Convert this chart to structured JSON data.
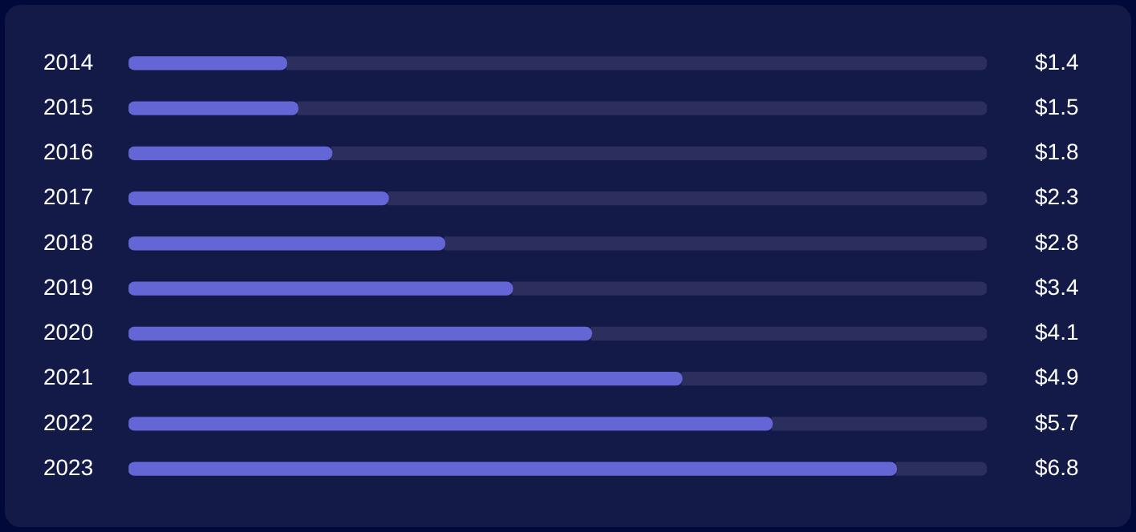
{
  "chart_data": {
    "type": "bar",
    "orientation": "horizontal",
    "stacked": true,
    "categories": [
      "2014",
      "2015",
      "2016",
      "2017",
      "2018",
      "2019",
      "2020",
      "2021",
      "2022",
      "2023"
    ],
    "series": [
      {
        "color": "#6466d6",
        "values": [
          1.4,
          1.5,
          1.8,
          2.3,
          2.8,
          3.4,
          4.1,
          4.9,
          5.7,
          6.8
        ],
        "value_labels": [
          "$1.4",
          "$1.5",
          "$1.8",
          "$2.3",
          "$2.8",
          "$3.4",
          "$4.1",
          "$4.9",
          "$5.7",
          "$6.8"
        ]
      },
      {
        "color": "#2c2f5e",
        "values": [
          6.2,
          6.1,
          5.8,
          5.3,
          4.8,
          4.2,
          3.5,
          2.7,
          1.9,
          0.8
        ]
      }
    ],
    "xlim": [
      0,
      7.6
    ],
    "tick_labels": "y",
    "grid": false,
    "legend": false
  }
}
